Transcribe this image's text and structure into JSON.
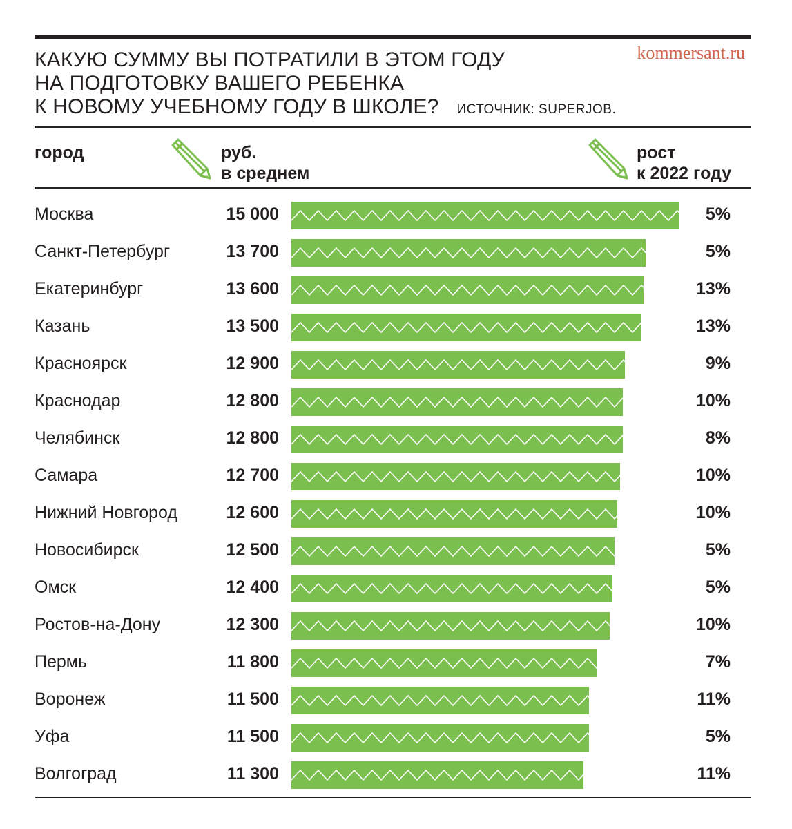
{
  "title": {
    "lines": [
      "КАКУЮ СУММУ ВЫ ПОТРАТИЛИ В ЭТОМ ГОДУ",
      "НА ПОДГОТОВКУ ВАШЕГО РЕБЕНКА",
      "К НОВОМУ УЧЕБНОМУ ГОДУ В ШКОЛЕ?"
    ],
    "source": "ИСТОЧНИК: SUPERJOB."
  },
  "brand": "kommersant.ru",
  "headers": {
    "city": "город",
    "value_line1": "руб.",
    "value_line2": "в среднем",
    "growth_line1": "рост",
    "growth_line2": "к 2022 году"
  },
  "icons": {
    "header_left": "pencil-icon",
    "header_right": "pencil-icon"
  },
  "colors": {
    "bar": "#7bbf4e",
    "zigzag": "#ffffff",
    "brand": "#d0664c",
    "pencil": "#7bbf4e"
  },
  "chart_data": {
    "type": "bar",
    "orientation": "horizontal",
    "categories": [
      "Москва",
      "Санкт-Петербург",
      "Екатеринбург",
      "Казань",
      "Красноярск",
      "Краснодар",
      "Челябинск",
      "Самара",
      "Нижний Новгород",
      "Новосибирск",
      "Омск",
      "Ростов-на-Дону",
      "Пермь",
      "Воронеж",
      "Уфа",
      "Волгоград"
    ],
    "values": [
      15000,
      13700,
      13600,
      13500,
      12900,
      12800,
      12800,
      12700,
      12600,
      12500,
      12400,
      12300,
      11800,
      11500,
      11500,
      11300
    ],
    "value_labels": [
      "15 000",
      "13 700",
      "13 600",
      "13 500",
      "12 900",
      "12 800",
      "12 800",
      "12 700",
      "12 600",
      "12 500",
      "12 400",
      "12 300",
      "11 800",
      "11 500",
      "11 500",
      "11 300"
    ],
    "growth_labels": [
      "5%",
      "5%",
      "13%",
      "13%",
      "9%",
      "10%",
      "8%",
      "10%",
      "10%",
      "5%",
      "5%",
      "10%",
      "7%",
      "11%",
      "5%",
      "11%"
    ],
    "xlim": [
      0,
      15000
    ]
  }
}
